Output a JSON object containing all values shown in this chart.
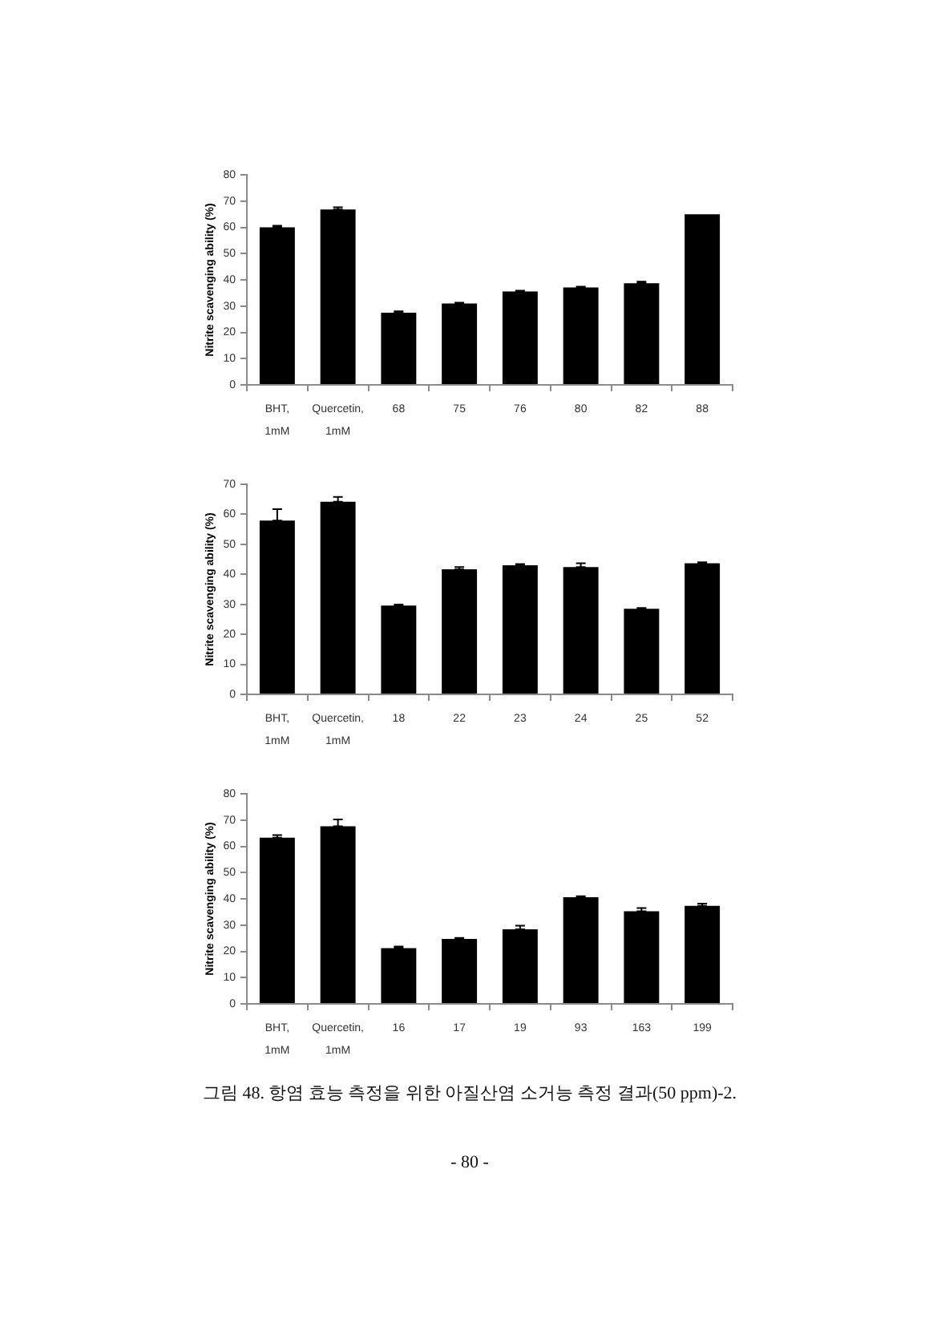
{
  "chart_data": [
    {
      "type": "bar",
      "ylabel": "Nitrite scavenging ability (%)",
      "categories": [
        "BHT, 1mM",
        "Quercetin, 1mM",
        "68",
        "75",
        "76",
        "80",
        "82",
        "88"
      ],
      "values": [
        60.0,
        66.8,
        27.5,
        31.0,
        35.6,
        37.1,
        38.7,
        65.0
      ],
      "errors": [
        [
          60.0,
          60.6
        ],
        [
          66.8,
          67.6
        ],
        [
          27.5,
          28.0
        ],
        [
          31.0,
          31.3
        ],
        [
          35.6,
          35.9
        ],
        [
          37.1,
          37.4
        ],
        [
          38.7,
          39.3
        ],
        null
      ],
      "color": "#000000",
      "ylim": [
        0,
        80
      ],
      "yticks": [
        0,
        10,
        20,
        30,
        40,
        50,
        60,
        70,
        80
      ]
    },
    {
      "type": "bar",
      "ylabel": "Nitrite scavenging ability (%)",
      "categories": [
        "BHT, 1mM",
        "Quercetin, 1mM",
        "18",
        "22",
        "23",
        "24",
        "25",
        "52"
      ],
      "values": [
        57.9,
        64.2,
        29.6,
        41.7,
        43.0,
        42.4,
        28.5,
        43.7
      ],
      "errors": [
        [
          57.9,
          61.7
        ],
        [
          64.2,
          65.8
        ],
        [
          29.6,
          29.9
        ],
        [
          41.7,
          42.4
        ],
        [
          43.0,
          43.4
        ],
        [
          42.4,
          43.7
        ],
        [
          28.5,
          28.8
        ],
        [
          43.7,
          44.0
        ]
      ],
      "color": "#000000",
      "ylim": [
        0,
        70
      ],
      "yticks": [
        0,
        10,
        20,
        30,
        40,
        50,
        60,
        70
      ]
    },
    {
      "type": "bar",
      "ylabel": "Nitrite scavenging ability (%)",
      "categories": [
        "BHT, 1mM",
        "Quercetin, 1mM",
        "16",
        "17",
        "19",
        "93",
        "163",
        "199"
      ],
      "values": [
        63.3,
        67.6,
        21.2,
        24.7,
        28.4,
        40.6,
        35.3,
        37.3
      ],
      "errors": [
        [
          63.3,
          64.3
        ],
        [
          67.6,
          70.2
        ],
        [
          21.2,
          21.8
        ],
        [
          24.7,
          25.1
        ],
        [
          28.4,
          29.8
        ],
        [
          40.6,
          41.0
        ],
        [
          35.3,
          36.5
        ],
        [
          37.3,
          38.2
        ]
      ],
      "color": "#000000",
      "ylim": [
        0,
        80
      ],
      "yticks": [
        0,
        10,
        20,
        30,
        40,
        50,
        60,
        70,
        80
      ],
      "annotations": [
        "그림 48. 항염 효능 측정을 위한 아질산염 소거능 측정 결과(50 ppm)-2.",
        "- 80 -"
      ]
    }
  ]
}
